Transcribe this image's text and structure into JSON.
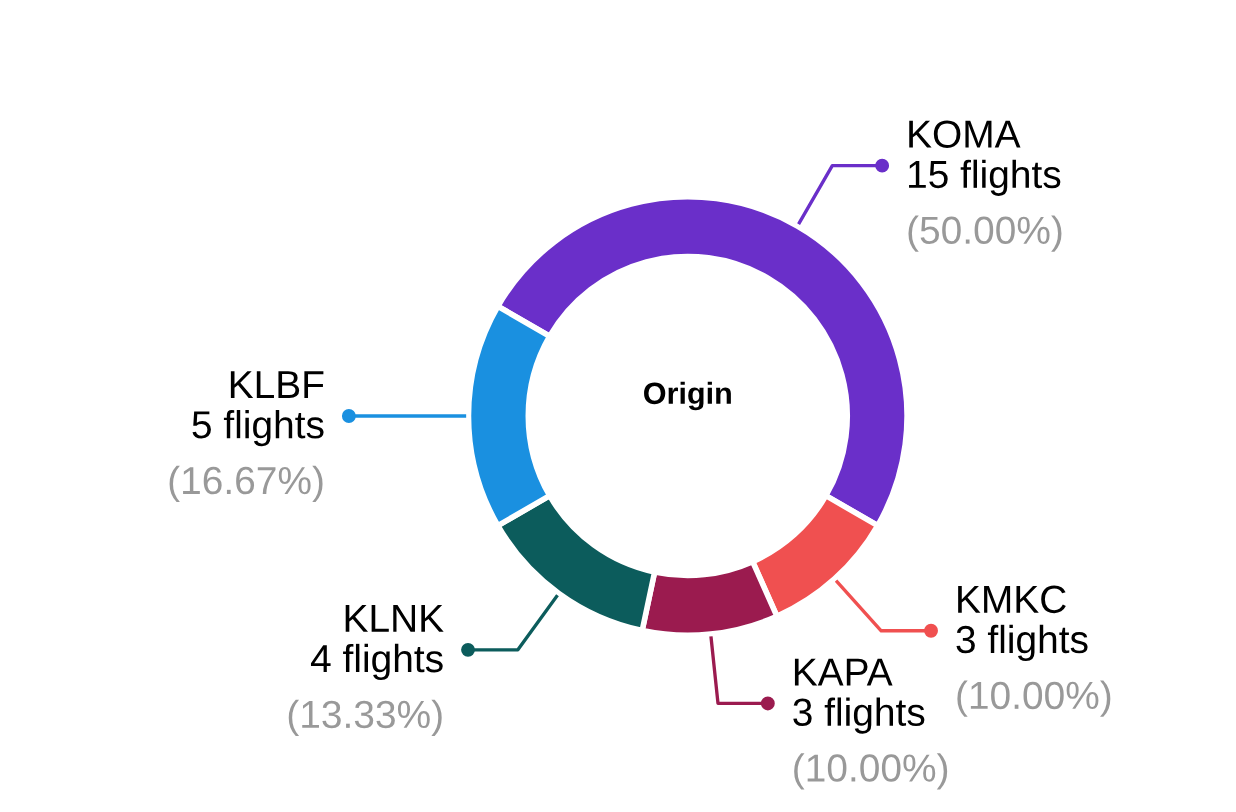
{
  "chart_data": {
    "type": "donut",
    "title": "Origin",
    "categories": [
      "KOMA",
      "KMKC",
      "KAPA",
      "KLNK",
      "KLBF"
    ],
    "values": [
      15,
      3,
      3,
      4,
      5
    ],
    "colors": [
      "#6a2fc9",
      "#f05050",
      "#9b1b4f",
      "#0c5c5c",
      "#1a90e0"
    ],
    "value_labels": [
      "15 flights\n(50.00%)",
      "3 flights\n(10.00%)",
      "3 flights\n(10.00%)",
      "4 flights\n(13.33%)",
      "5 flights\n(16.67%)"
    ],
    "legend": false
  }
}
